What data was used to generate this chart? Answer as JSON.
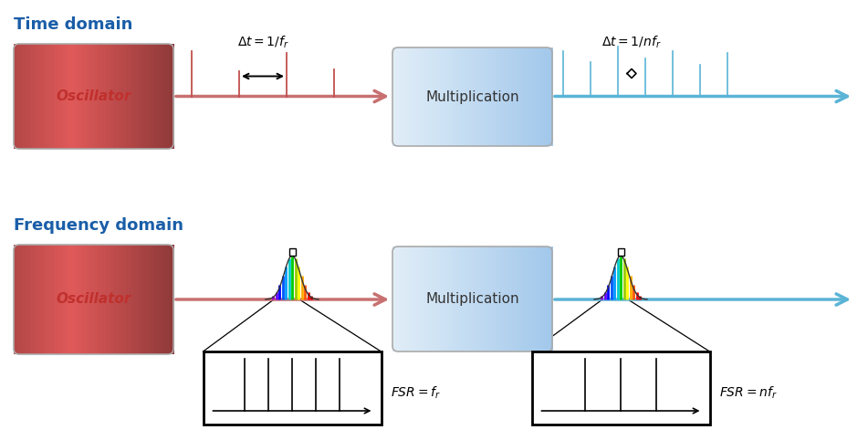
{
  "title_time": "Time domain",
  "title_freq": "Frequency domain",
  "title_color": "#1a5ea8",
  "title_fontsize": 13,
  "osc_label": "Oscillator",
  "mult_label": "Multiplication",
  "arrow_color_red": "#c87070",
  "arrow_color_blue": "#5ab4d6",
  "pulse_color_red": "#c0504d",
  "pulse_color_blue": "#5ab4d6",
  "freq_colors": [
    "#9900cc",
    "#6600ff",
    "#0000ff",
    "#0055ff",
    "#0099ff",
    "#00cccc",
    "#00cc00",
    "#99cc00",
    "#ffff00",
    "#ffaa00",
    "#ff5500",
    "#ff0000",
    "#cc0000"
  ],
  "label_dt1": "$\\Delta t= 1/f_r$",
  "label_dt2": "$\\Delta t= 1/nf_r$",
  "label_fsr1": "$FSR= f_r$",
  "label_fsr2": "$FSR= nf_r$"
}
